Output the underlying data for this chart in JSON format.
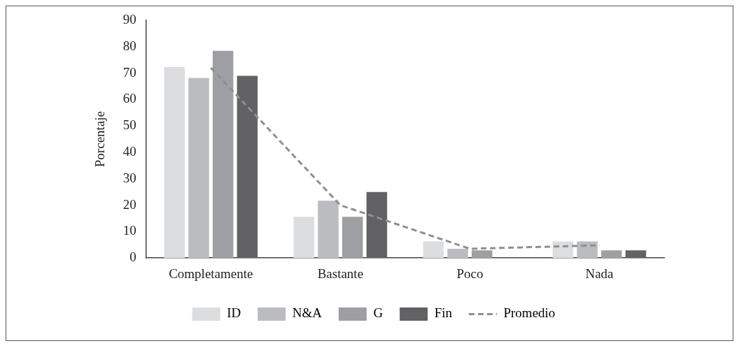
{
  "chart_data": {
    "type": "bar",
    "ylabel": "Porcentaje",
    "categories": [
      "Completamente",
      "Bastante",
      "Poco",
      "Nada"
    ],
    "series": [
      {
        "name": "ID",
        "color": "#dcdddf",
        "values": [
          72.3,
          15.6,
          6.3,
          6.3
        ]
      },
      {
        "name": "N&A",
        "color": "#bbbcbf",
        "values": [
          68.2,
          21.7,
          3.5,
          6.3
        ]
      },
      {
        "name": "G",
        "color": "#9e9fa2",
        "values": [
          78.4,
          15.6,
          2.9,
          2.9
        ]
      },
      {
        "name": "Fin",
        "color": "#626264",
        "values": [
          69,
          25,
          0,
          2.9
        ]
      },
      {
        "name": "Promedio",
        "type": "line",
        "color": "#8f8f91",
        "line_style": "dashed",
        "marker": "none",
        "values": [
          72,
          20,
          3.5,
          4.8
        ]
      }
    ],
    "ylim": [
      0,
      90
    ],
    "yticks": [
      0,
      10,
      20,
      30,
      40,
      50,
      60,
      70,
      80,
      90
    ],
    "grid": false,
    "legend": "bottom"
  }
}
